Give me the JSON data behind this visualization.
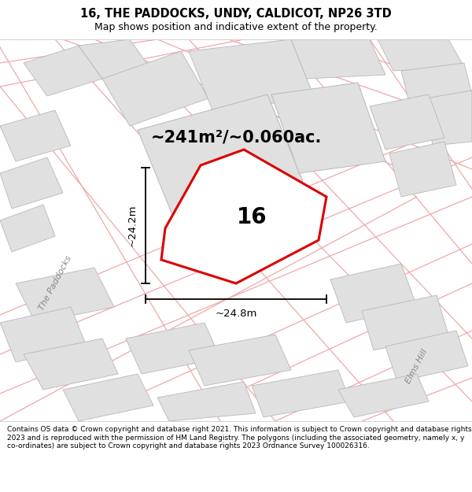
{
  "title_line1": "16, THE PADDOCKS, UNDY, CALDICOT, NP26 3TD",
  "title_line2": "Map shows position and indicative extent of the property.",
  "footer_text": "Contains OS data © Crown copyright and database right 2021. This information is subject to Crown copyright and database rights 2023 and is reproduced with the permission of HM Land Registry. The polygons (including the associated geometry, namely x, y co-ordinates) are subject to Crown copyright and database rights 2023 Ordnance Survey 100026316.",
  "area_label": "~241m²/~0.060ac.",
  "property_number": "16",
  "width_label": "~24.8m",
  "height_label": "~24.2m",
  "title_bg": "#ffffff",
  "footer_bg": "#ffffff",
  "map_bg": "#ffffff",
  "red_color": "#dd0000",
  "building_fill": "#e0e0e0",
  "building_edge": "#b8b8b8",
  "road_line_color": "#f0a8a8",
  "dim_color": "#000000",
  "label_color": "#888888",
  "title_fontsize": 10.5,
  "subtitle_fontsize": 9.0,
  "area_fontsize": 15,
  "number_fontsize": 20,
  "dim_fontsize": 9.5,
  "road_fontsize": 8,
  "footer_fontsize": 6.5
}
